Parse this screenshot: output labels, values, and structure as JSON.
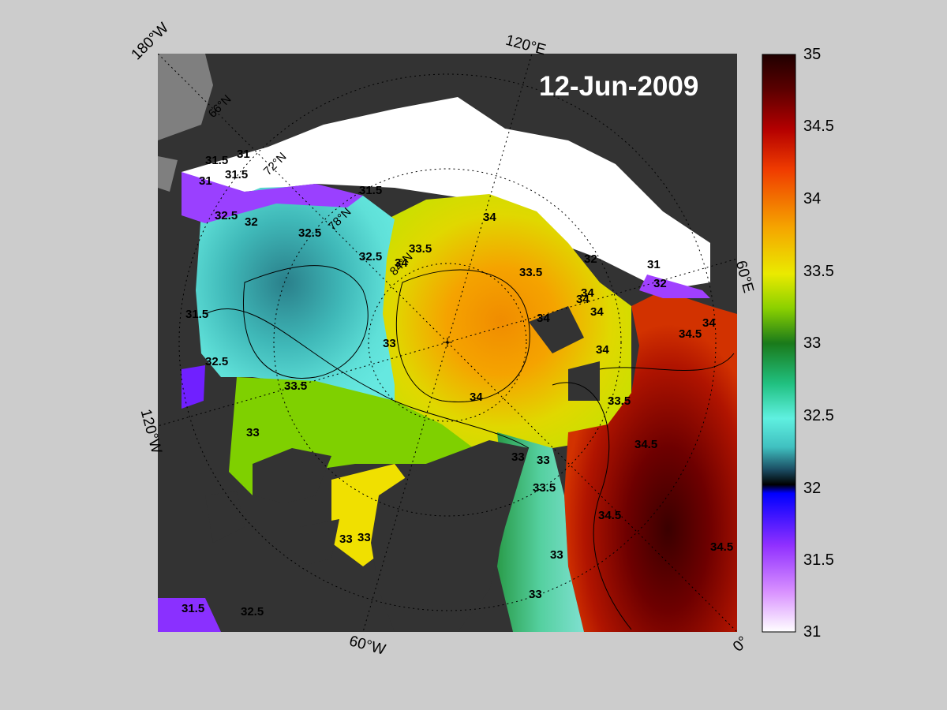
{
  "date": "12-Jun-2009",
  "longitude_labels": {
    "lon_180w": "180°W",
    "lon_120e": "120°E",
    "lon_60e": "60°E",
    "lon_120w": "120°W",
    "lon_60w": "60°W",
    "lon_0": "0°"
  },
  "latitude_labels": [
    "66°N",
    "72°N",
    "78°N",
    "84°N"
  ],
  "colorbar": {
    "min": 31,
    "max": 35,
    "ticks": [
      "35",
      "34.5",
      "34",
      "33.5",
      "33",
      "32.5",
      "32",
      "31.5",
      "31"
    ]
  },
  "contour_labels": [
    "31.5",
    "31",
    "31.5",
    "31",
    "31.5",
    "32.5",
    "32",
    "32.5",
    "32.5",
    "33",
    "33.5",
    "34",
    "34",
    "33.5",
    "33.5",
    "34",
    "34",
    "34",
    "34",
    "34.5",
    "34",
    "34",
    "33.5",
    "33",
    "33",
    "34.5",
    "34.5",
    "34.5",
    "33",
    "33.5",
    "33",
    "33",
    "32.5",
    "31.5",
    "32",
    "33",
    "31.5",
    "32.5",
    "31",
    "32",
    "33",
    "34"
  ],
  "colors": {
    "background": "#cccccc",
    "land": "#333333",
    "land_outside": "#7f7f7f",
    "ice": "#ffffff"
  }
}
